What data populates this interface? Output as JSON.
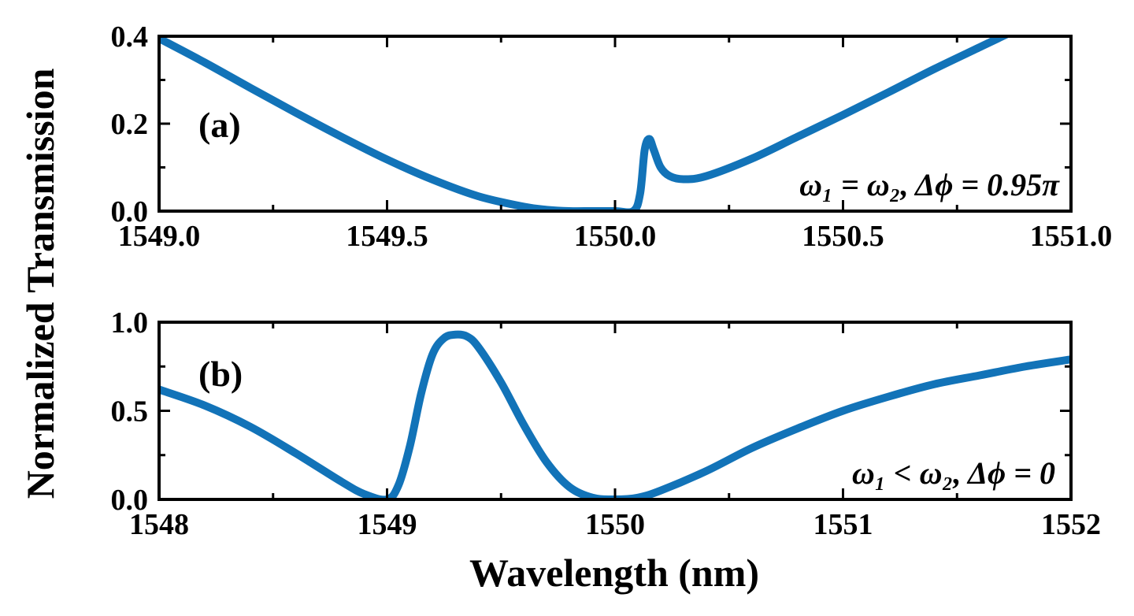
{
  "figure": {
    "ylabel": "Normalized  Transmission",
    "xlabel": "Wavelength (nm)"
  },
  "chart_data": [
    {
      "type": "line",
      "panel_label": "(a)",
      "annotation": "ω₁ = ω₂, Δϕ = 0.95π",
      "xlim": [
        1549.0,
        1551.0
      ],
      "ylim": [
        0.0,
        0.4
      ],
      "xticks": [
        "1549.0",
        "1549.5",
        "1550.0",
        "1550.5",
        "1551.0"
      ],
      "yticks": [
        "0.0",
        "0.2",
        "0.4"
      ],
      "grid": false,
      "color": "#1273b8",
      "series": [
        {
          "x": [
            1549.0,
            1549.1,
            1549.2,
            1549.3,
            1549.4,
            1549.5,
            1549.6,
            1549.7,
            1549.8,
            1549.85,
            1549.9,
            1549.95,
            1550.0,
            1550.04,
            1550.055,
            1550.065,
            1550.075,
            1550.085,
            1550.1,
            1550.12,
            1550.15,
            1550.2,
            1550.3,
            1550.4,
            1550.5,
            1550.6,
            1550.7,
            1550.8,
            1550.87
          ],
          "y": [
            0.395,
            0.34,
            0.282,
            0.225,
            0.17,
            0.118,
            0.072,
            0.034,
            0.01,
            0.003,
            0.0,
            0.0,
            0.0,
            0.0,
            0.04,
            0.14,
            0.165,
            0.14,
            0.1,
            0.08,
            0.073,
            0.08,
            0.12,
            0.17,
            0.22,
            0.272,
            0.325,
            0.375,
            0.41
          ]
        }
      ]
    },
    {
      "type": "line",
      "panel_label": "(b)",
      "annotation": "ω₁ < ω₂, Δϕ = 0",
      "xlim": [
        1548,
        1552
      ],
      "ylim": [
        0.0,
        1.0
      ],
      "xticks": [
        "1548",
        "1549",
        "1550",
        "1551",
        "1552"
      ],
      "yticks": [
        "0.0",
        "0.5",
        "1.0"
      ],
      "grid": false,
      "color": "#1273b8",
      "series": [
        {
          "x": [
            1548.0,
            1548.2,
            1548.4,
            1548.6,
            1548.8,
            1548.9,
            1549.0,
            1549.05,
            1549.1,
            1549.15,
            1549.2,
            1549.25,
            1549.3,
            1549.35,
            1549.4,
            1549.5,
            1549.6,
            1549.7,
            1549.8,
            1549.9,
            1550.0,
            1550.1,
            1550.2,
            1550.4,
            1550.6,
            1550.8,
            1551.0,
            1551.2,
            1551.4,
            1551.6,
            1551.8,
            1552.0
          ],
          "y": [
            0.62,
            0.53,
            0.41,
            0.26,
            0.1,
            0.03,
            0.0,
            0.08,
            0.3,
            0.6,
            0.82,
            0.91,
            0.93,
            0.92,
            0.86,
            0.66,
            0.42,
            0.21,
            0.07,
            0.01,
            0.0,
            0.01,
            0.05,
            0.16,
            0.29,
            0.4,
            0.5,
            0.58,
            0.65,
            0.7,
            0.75,
            0.79
          ]
        }
      ]
    }
  ]
}
